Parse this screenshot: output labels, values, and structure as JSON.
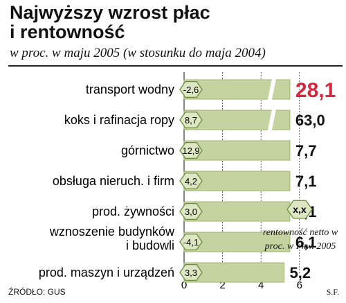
{
  "header": {
    "title": "Najwyższy wzrost płac\ni rentowność",
    "subtitle": "w proc. w maju 2005 (w stosunku do maja 2004)"
  },
  "legend": {
    "hex_label": "x,x",
    "note": "rentowność netto w proc. w I kw. 2005"
  },
  "footer": {
    "source": "ŹRÓDŁO: GUS",
    "author": "S.F."
  },
  "colors": {
    "bar": "#c5d3a0",
    "bar_edge": "#9fb36e",
    "hex_fill": "#dde7c3",
    "hex_edge": "#6f8a3c",
    "highlight": "#d7263d",
    "grid": "#333333"
  },
  "chart_data": {
    "type": "bar",
    "orientation": "horizontal",
    "categories": [
      "transport wodny",
      "koks i rafinacja ropy",
      "górnictwo",
      "obsługa nieruch. i firm",
      "prod. żywności",
      "wznoszenie budynków i budowli",
      "prod. maszyn i urządzeń"
    ],
    "values": [
      28.1,
      63.0,
      7.7,
      7.1,
      6.1,
      6.1,
      5.2
    ],
    "value_labels": [
      "28,1",
      "63,0",
      "7,7",
      "7,1",
      "6,1",
      "6,1",
      "5,2"
    ],
    "profitability": [
      "-2,6",
      "8,7",
      "12,9",
      "4,2",
      "3,0",
      "-4,1",
      "3,3"
    ],
    "highlight_index": 0,
    "xlim": [
      0,
      6
    ],
    "x_ticks": [
      "0",
      "2",
      "4",
      "6"
    ],
    "axis_breaks": [
      0,
      1
    ],
    "grid": "vertical"
  }
}
